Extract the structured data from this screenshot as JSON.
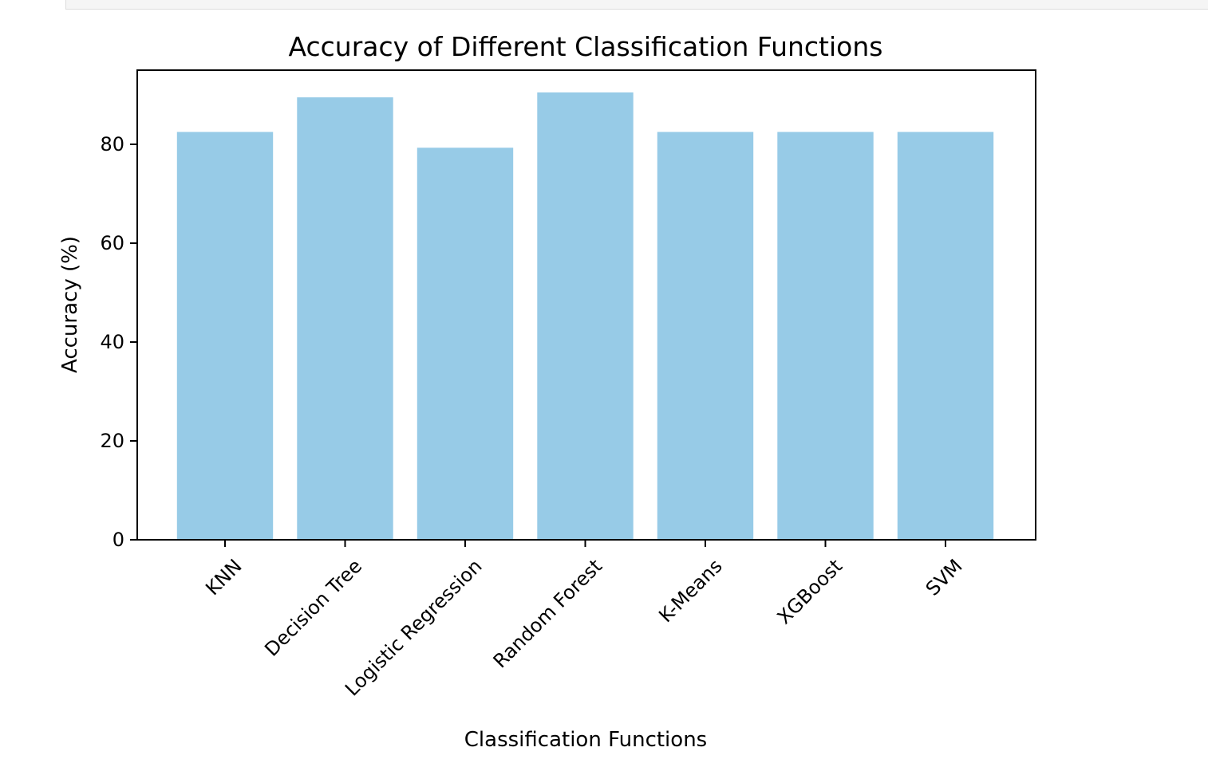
{
  "chart_data": {
    "type": "bar",
    "title": "Accuracy of Different Classification Functions",
    "xlabel": "Classification Functions",
    "ylabel": "Accuracy (%)",
    "categories": [
      "KNN",
      "Decision Tree",
      "Logistic Regression",
      "Random Forest",
      "K-Means",
      "XGBoost",
      "SVM"
    ],
    "values": [
      82.5,
      89.5,
      79.3,
      90.5,
      82.5,
      82.5,
      82.5
    ],
    "ylim": [
      0,
      95
    ],
    "yticks": [
      0,
      20,
      40,
      60,
      80
    ],
    "bar_color": "#97cbe7",
    "grid": false,
    "legend": "none"
  }
}
